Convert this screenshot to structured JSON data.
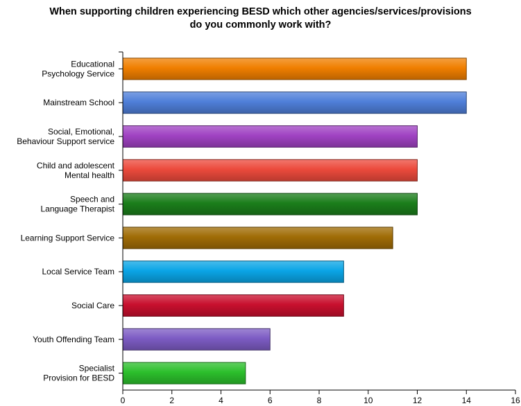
{
  "chart_data": {
    "type": "bar",
    "orientation": "horizontal",
    "title_lines": [
      "When supporting children experiencing BESD which other agencies/services/provisions",
      "do you commonly work with?"
    ],
    "categories": [
      [
        "Educational",
        "Psychology Service"
      ],
      [
        "Mainstream School"
      ],
      [
        "Social, Emotional,",
        "Behaviour Support service"
      ],
      [
        "Child and adolescent",
        "Mental health"
      ],
      [
        "Speech and",
        "Language Therapist"
      ],
      [
        "Learning Support Service"
      ],
      [
        "Local Service Team"
      ],
      [
        "Social Care"
      ],
      [
        "Youth Offending Team"
      ],
      [
        "Specialist",
        "Provision for BESD"
      ]
    ],
    "values": [
      14,
      14,
      12,
      12,
      12,
      11,
      9,
      9,
      6,
      5
    ],
    "colors": [
      "#f07f00",
      "#4f7fd9",
      "#a043c3",
      "#ec4a3c",
      "#1b7e1b",
      "#a06c06",
      "#0aa5e6",
      "#c8102e",
      "#7d5cc4",
      "#2cbf2c"
    ],
    "xlim": [
      0,
      16
    ],
    "xticks": [
      0,
      2,
      4,
      6,
      8,
      10,
      12,
      14,
      16
    ],
    "grid": false,
    "legend": "none"
  }
}
